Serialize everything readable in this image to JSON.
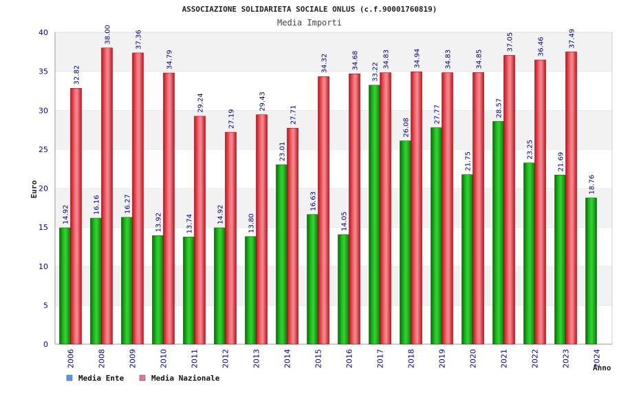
{
  "chart_data": {
    "type": "bar",
    "title": "ASSOCIAZIONE SOLIDARIETA SOCIALE ONLUS (c.f.90001760819)",
    "subtitle": "Media Importi",
    "ylabel": "Euro",
    "xlabel": "Anno",
    "ylim": [
      0,
      40
    ],
    "yticks": [
      0,
      5,
      10,
      15,
      20,
      25,
      30,
      35,
      40
    ],
    "grid": "horizontal bands",
    "legend_position": "bottom-left",
    "categories": [
      "2006",
      "2008",
      "2009",
      "2010",
      "2011",
      "2012",
      "2013",
      "2014",
      "2015",
      "2016",
      "2017",
      "2018",
      "2019",
      "2020",
      "2021",
      "2022",
      "2023",
      "2024"
    ],
    "series": [
      {
        "name": "Media Ente",
        "color": "#1fa51f",
        "legend_color": "#5599ee",
        "values": [
          14.92,
          16.16,
          16.27,
          13.92,
          13.74,
          14.92,
          13.8,
          23.01,
          16.63,
          14.05,
          33.22,
          26.08,
          27.77,
          21.75,
          28.57,
          23.25,
          21.69,
          18.76
        ],
        "labels": [
          "14.92",
          "16.16",
          "16.27",
          "13.92",
          "13.74",
          "14.92",
          "13.80",
          "23.01",
          "16.63",
          "14.05",
          "33.22",
          "26.08",
          "27.77",
          "21.75",
          "28.57",
          "23.25",
          "21.69",
          "18.76"
        ]
      },
      {
        "name": "Media Nazionale",
        "color": "#e02030",
        "legend_color": "#dd77aa",
        "values": [
          32.82,
          38.0,
          37.36,
          34.79,
          29.24,
          27.19,
          29.43,
          27.71,
          34.32,
          34.68,
          34.83,
          34.94,
          34.83,
          34.85,
          37.05,
          36.46,
          37.49,
          null
        ],
        "labels": [
          "32.82",
          "38.00",
          "37.36",
          "34.79",
          "29.24",
          "27.19",
          "29.43",
          "27.71",
          "34.32",
          "34.68",
          "34.83",
          "34.94",
          "34.83",
          "34.85",
          "37.05",
          "36.46",
          "37.49",
          null
        ]
      }
    ]
  }
}
